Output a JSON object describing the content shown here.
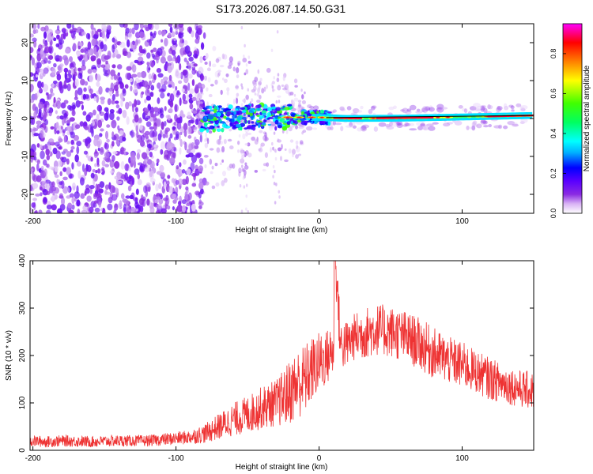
{
  "title": "S173.2026.087.14.50.G31",
  "chart_data": [
    {
      "type": "heatmap",
      "xlabel": "Height of straight line (km)",
      "ylabel": "Frequency (Hz)",
      "xlim": [
        -202,
        150
      ],
      "ylim": [
        -25,
        25
      ],
      "xticks": [
        -200,
        -100,
        0,
        100
      ],
      "xtick_labels": [
        "-200",
        "-100",
        "0",
        "100"
      ],
      "yticks": [
        -20,
        -10,
        0,
        10,
        20
      ],
      "ytick_labels": [
        "-20",
        "-10",
        "0",
        "10",
        "20"
      ],
      "colorbar": {
        "label": "Normalized spectral amplitude",
        "range": [
          0,
          0.95
        ],
        "ticks": [
          0.0,
          0.2,
          0.4,
          0.6,
          0.8
        ],
        "tick_labels": [
          "0.0",
          "0.2",
          "0.4",
          "0.6",
          "0.8"
        ],
        "colors": [
          "#ffffff",
          "#d9b3f5",
          "#8a2be2",
          "#5a00ff",
          "#0000ff",
          "#00b0ff",
          "#00ffff",
          "#00ff60",
          "#40ff00",
          "#ffff00",
          "#ff8000",
          "#ff0000",
          "#ff00ff"
        ]
      },
      "ridge": {
        "description_free": true,
        "points": [
          [
            -80,
            0.0
          ],
          [
            -60,
            0.2
          ],
          [
            -40,
            0.5
          ],
          [
            -20,
            0.3
          ],
          [
            0,
            0.3
          ],
          [
            20,
            0.0
          ],
          [
            60,
            0.1
          ],
          [
            100,
            0.4
          ],
          [
            150,
            0.8
          ]
        ]
      }
    },
    {
      "type": "line",
      "xlabel": "Height of straight line (km)",
      "ylabel": "SNR (10 * v/v)",
      "xlim": [
        -202,
        150
      ],
      "ylim": [
        0,
        400
      ],
      "xticks": [
        -200,
        -100,
        0,
        100
      ],
      "xtick_labels": [
        "-200",
        "-100",
        "0",
        "100"
      ],
      "yticks": [
        0,
        100,
        200,
        300,
        400
      ],
      "ytick_labels": [
        "0",
        "100",
        "200",
        "300",
        "400"
      ],
      "series": [
        {
          "name": "SNR",
          "color": "#ee3333",
          "x": [
            -202,
            -190,
            -180,
            -160,
            -140,
            -120,
            -100,
            -90,
            -80,
            -70,
            -60,
            -50,
            -40,
            -30,
            -25,
            -20,
            -15,
            -10,
            -5,
            0,
            5,
            10,
            12,
            15,
            20,
            25,
            30,
            40,
            50,
            60,
            70,
            80,
            90,
            100,
            110,
            120,
            130,
            140,
            150
          ],
          "y": [
            20,
            18,
            20,
            18,
            20,
            20,
            25,
            28,
            35,
            50,
            65,
            75,
            90,
            100,
            110,
            125,
            140,
            150,
            170,
            185,
            195,
            210,
            380,
            220,
            225,
            240,
            245,
            255,
            250,
            240,
            225,
            205,
            190,
            180,
            165,
            150,
            140,
            130,
            125
          ],
          "amplitude": [
            12,
            12,
            12,
            12,
            12,
            12,
            14,
            15,
            20,
            28,
            35,
            40,
            45,
            50,
            60,
            70,
            75,
            75,
            70,
            65,
            60,
            55,
            60,
            55,
            50,
            50,
            55,
            55,
            55,
            55,
            55,
            55,
            50,
            50,
            45,
            45,
            40,
            40,
            40
          ]
        }
      ]
    }
  ]
}
